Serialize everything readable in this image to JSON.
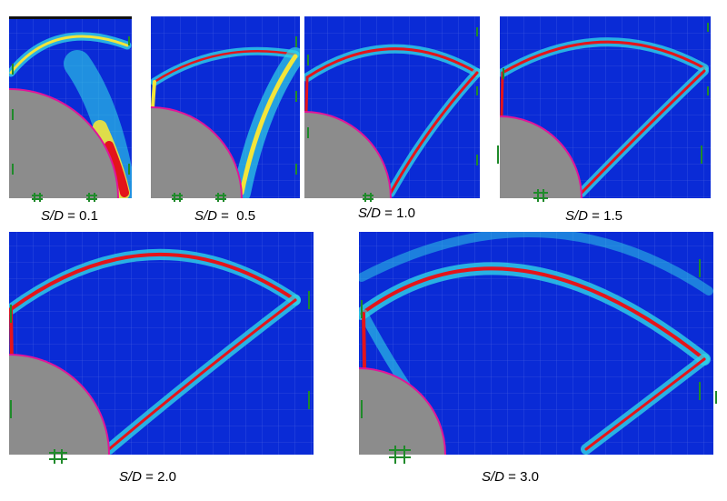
{
  "colors": {
    "background_field": "#0a2bd6",
    "obstacle": "#8c8c8c",
    "obstacle_edge": "#e0159a",
    "band_outer": "#2fd3e6",
    "band_mid": "#f3e53a",
    "band_core": "#e4141a",
    "marker": "#1f8a2a"
  },
  "panels": [
    {
      "var": "S/D",
      "eq": " = ",
      "value": "0.1"
    },
    {
      "var": "S/D",
      "eq": " =  ",
      "value": "0.5"
    },
    {
      "var": "S/D",
      "eq": " = ",
      "value": "1.0"
    },
    {
      "var": "S/D",
      "eq": " = ",
      "value": "1.5"
    },
    {
      "var": "S/D",
      "eq": " = ",
      "value": "2.0"
    },
    {
      "var": "S/D",
      "eq": " = ",
      "value": "3.0"
    }
  ]
}
